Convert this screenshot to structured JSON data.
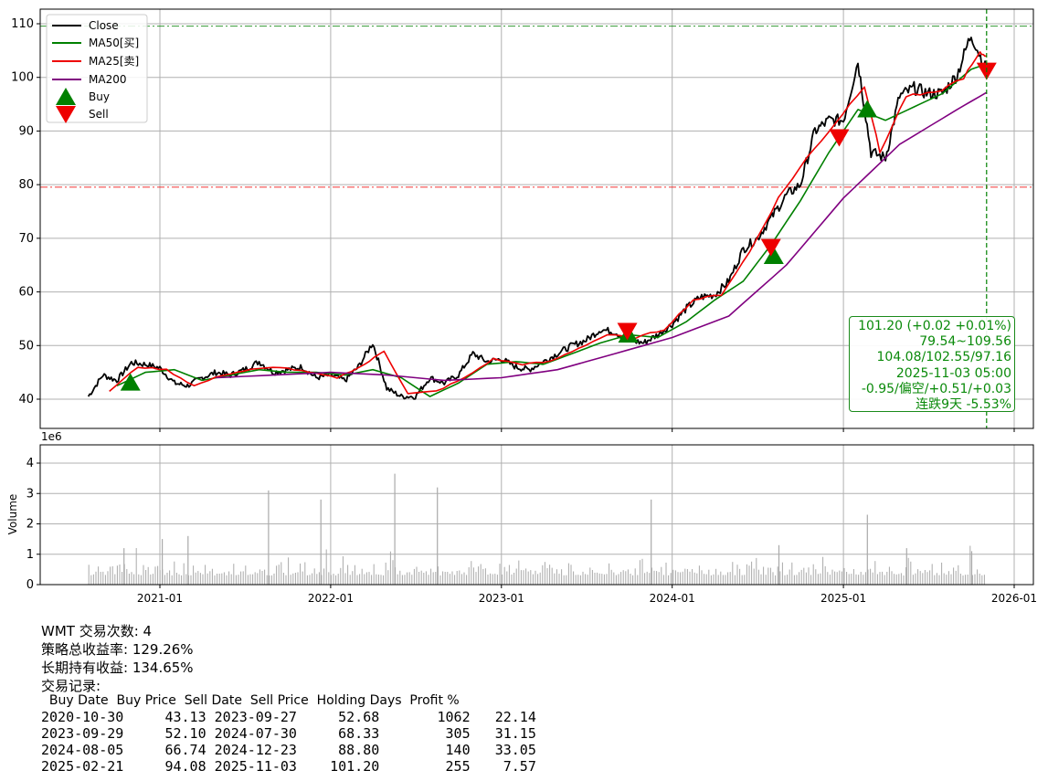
{
  "chart_data": [
    {
      "type": "line",
      "title": "",
      "xlabel": "",
      "ylabel": "",
      "ylim": [
        34,
        113
      ],
      "yticks": [
        40,
        50,
        60,
        70,
        80,
        90,
        100,
        110
      ],
      "xticks": [
        "2021-01",
        "2022-01",
        "2023-01",
        "2024-01",
        "2025-01",
        "2026-01"
      ],
      "grid": true,
      "legend_position": "top-left",
      "series": [
        {
          "name": "Close",
          "color": "#000000",
          "x": [
            "2020-08-01",
            "2020-09-01",
            "2020-10-01",
            "2020-11-01",
            "2020-12-01",
            "2021-01-01",
            "2021-02-01",
            "2021-03-01",
            "2021-04-01",
            "2021-05-01",
            "2021-06-01",
            "2021-07-01",
            "2021-08-01",
            "2021-09-01",
            "2021-10-01",
            "2021-11-01",
            "2021-12-01",
            "2022-01-01",
            "2022-02-01",
            "2022-03-01",
            "2022-04-01",
            "2022-05-01",
            "2022-06-01",
            "2022-07-01",
            "2022-08-01",
            "2022-09-01",
            "2022-10-01",
            "2022-11-01",
            "2022-12-01",
            "2023-01-01",
            "2023-02-01",
            "2023-03-01",
            "2023-04-01",
            "2023-05-01",
            "2023-06-01",
            "2023-07-01",
            "2023-08-01",
            "2023-09-01",
            "2023-10-01",
            "2023-11-01",
            "2023-12-01",
            "2024-01-01",
            "2024-02-01",
            "2024-03-01",
            "2024-04-01",
            "2024-05-01",
            "2024-06-01",
            "2024-07-01",
            "2024-08-01",
            "2024-09-01",
            "2024-10-01",
            "2024-11-01",
            "2024-12-01",
            "2025-01-01",
            "2025-02-01",
            "2025-03-01",
            "2025-04-01",
            "2025-05-01",
            "2025-06-01",
            "2025-07-01",
            "2025-08-01",
            "2025-09-01",
            "2025-10-01",
            "2025-11-03"
          ],
          "values": [
            40.5,
            44.5,
            43.5,
            46.8,
            46.5,
            45.8,
            43.0,
            42.5,
            44.0,
            45.0,
            44.5,
            45.5,
            47.0,
            45.0,
            45.5,
            46.0,
            44.0,
            44.5,
            43.5,
            46.0,
            50.5,
            42.0,
            40.5,
            40.5,
            44.0,
            43.0,
            44.5,
            48.5,
            47.0,
            47.5,
            46.0,
            45.5,
            47.0,
            48.5,
            50.0,
            51.0,
            53.0,
            52.5,
            51.0,
            50.5,
            52.0,
            54.0,
            57.0,
            59.0,
            59.5,
            62.0,
            68.0,
            70.0,
            74.0,
            78.0,
            80.0,
            90.0,
            92.0,
            92.0,
            103.0,
            86.0,
            85.0,
            96.5,
            98.0,
            97.0,
            97.0,
            100.5,
            108.0,
            101.2
          ]
        },
        {
          "name": "MA50[买]",
          "color": "#008000",
          "x": [
            "2020-10-01",
            "2020-12-01",
            "2021-02-01",
            "2021-04-01",
            "2021-06-01",
            "2021-08-01",
            "2021-10-01",
            "2021-12-01",
            "2022-02-01",
            "2022-04-01",
            "2022-06-01",
            "2022-08-01",
            "2022-10-01",
            "2022-12-01",
            "2023-02-01",
            "2023-04-01",
            "2023-06-01",
            "2023-08-01",
            "2023-10-01",
            "2023-12-01",
            "2024-02-01",
            "2024-04-01",
            "2024-06-01",
            "2024-08-01",
            "2024-10-01",
            "2024-12-01",
            "2025-02-01",
            "2025-04-01",
            "2025-06-01",
            "2025-08-01",
            "2025-10-01",
            "2025-11-03"
          ],
          "values": [
            42.5,
            45.0,
            45.5,
            43.5,
            44.5,
            45.5,
            45.0,
            45.0,
            44.5,
            45.5,
            44.0,
            40.5,
            43.0,
            46.5,
            47.0,
            46.5,
            48.5,
            50.5,
            52.0,
            51.5,
            54.5,
            58.5,
            62.0,
            69.0,
            77.0,
            86.0,
            94.0,
            92.0,
            94.5,
            97.0,
            101.5,
            102.5
          ]
        },
        {
          "name": "MA25[卖]",
          "color": "#ee0000",
          "x": [
            "2020-09-15",
            "2020-11-15",
            "2021-01-15",
            "2021-03-15",
            "2021-05-15",
            "2021-07-15",
            "2021-09-15",
            "2021-11-15",
            "2022-01-15",
            "2022-03-15",
            "2022-04-25",
            "2022-06-15",
            "2022-08-15",
            "2022-10-15",
            "2022-12-15",
            "2023-02-15",
            "2023-04-15",
            "2023-06-15",
            "2023-08-15",
            "2023-10-15",
            "2023-12-15",
            "2024-02-15",
            "2024-04-15",
            "2024-06-15",
            "2024-08-15",
            "2024-10-15",
            "2024-12-15",
            "2025-02-15",
            "2025-03-20",
            "2025-05-15",
            "2025-07-15",
            "2025-09-15",
            "2025-10-20",
            "2025-11-03"
          ],
          "values": [
            41.5,
            46.0,
            45.5,
            42.5,
            44.5,
            45.5,
            46.0,
            45.0,
            44.0,
            46.5,
            49.0,
            41.0,
            41.5,
            44.0,
            47.5,
            46.5,
            47.0,
            49.5,
            52.0,
            51.5,
            53.0,
            58.5,
            59.5,
            67.5,
            77.5,
            85.0,
            91.5,
            98.5,
            86.0,
            96.5,
            97.0,
            100.0,
            104.5,
            104.0
          ]
        },
        {
          "name": "MA200",
          "color": "#800080",
          "x": [
            "2021-05-01",
            "2021-09-01",
            "2022-01-01",
            "2022-05-01",
            "2022-09-01",
            "2023-01-01",
            "2023-05-01",
            "2023-09-01",
            "2024-01-01",
            "2024-05-01",
            "2024-09-01",
            "2025-01-01",
            "2025-05-01",
            "2025-09-01",
            "2025-11-03"
          ],
          "values": [
            44.0,
            44.5,
            45.0,
            44.5,
            43.5,
            44.0,
            45.5,
            48.5,
            51.5,
            55.5,
            65.0,
            77.5,
            87.5,
            94.0,
            97.2
          ]
        }
      ],
      "markers": [
        {
          "name": "Buy",
          "color": "#008000",
          "shape": "triangle-up",
          "points": [
            {
              "x": "2020-10-30",
              "y": 43.13
            },
            {
              "x": "2023-09-29",
              "y": 52.1
            },
            {
              "x": "2024-08-05",
              "y": 66.74
            },
            {
              "x": "2025-02-21",
              "y": 94.08
            }
          ]
        },
        {
          "name": "Sell",
          "color": "#ee0000",
          "shape": "triangle-down",
          "points": [
            {
              "x": "2023-09-27",
              "y": 52.68
            },
            {
              "x": "2024-07-30",
              "y": 68.33
            },
            {
              "x": "2024-12-23",
              "y": 88.8
            },
            {
              "x": "2025-11-03",
              "y": 101.2
            }
          ]
        }
      ],
      "hlines": [
        {
          "y": 109.56,
          "color": "#008000",
          "style": "dashdot"
        },
        {
          "y": 79.54,
          "color": "#ee0000",
          "style": "dashdot"
        }
      ],
      "vline": {
        "x": "2025-11-03",
        "color": "#008000",
        "style": "dashed"
      },
      "info_box": {
        "lines": [
          "101.20 (+0.02 +0.01%)",
          "79.54~109.56",
          "104.08/102.55/97.16",
          "2025-11-03 05:00",
          "-0.95/偏空/+0.51/+0.03",
          "连跌9天 -5.53%"
        ],
        "position": "bottom-right"
      }
    },
    {
      "type": "bar",
      "ylabel": "Volume",
      "scale_label": "1e6",
      "ylim": [
        0,
        4.7
      ],
      "yticks": [
        0,
        1,
        2,
        3,
        4
      ],
      "color": "#aaaaaa",
      "grid": true,
      "peaks": [
        {
          "x": "2020-10-15",
          "y": 1.2
        },
        {
          "x": "2021-01-05",
          "y": 1.5
        },
        {
          "x": "2021-03-01",
          "y": 1.6
        },
        {
          "x": "2021-08-20",
          "y": 3.1
        },
        {
          "x": "2021-12-10",
          "y": 2.8
        },
        {
          "x": "2022-05-17",
          "y": 3.65
        },
        {
          "x": "2022-08-16",
          "y": 3.2
        },
        {
          "x": "2023-11-16",
          "y": 2.8
        },
        {
          "x": "2024-08-15",
          "y": 1.3
        },
        {
          "x": "2025-02-20",
          "y": 2.3
        },
        {
          "x": "2025-05-15",
          "y": 1.2
        },
        {
          "x": "2025-10-01",
          "y": 1.1
        }
      ],
      "baseline_range": [
        0.3,
        0.9
      ]
    }
  ],
  "summary": {
    "line1": "WMT 交易次数: 4",
    "line2": "策略总收益率: 129.26%",
    "line3": "长期持有收益: 134.65%",
    "line4": "交易记录:"
  },
  "trade_table": {
    "columns": [
      "Buy Date",
      "Buy Price",
      "Sell Date",
      "Sell Price",
      "Holding Days",
      "Profit %"
    ],
    "rows": [
      [
        "2020-10-30",
        "43.13",
        "2023-09-27",
        "52.68",
        "1062",
        "22.14"
      ],
      [
        "2023-09-29",
        "52.10",
        "2024-07-30",
        "68.33",
        "305",
        "31.15"
      ],
      [
        "2024-08-05",
        "66.74",
        "2024-12-23",
        "88.80",
        "140",
        "33.05"
      ],
      [
        "2025-02-21",
        "94.08",
        "2025-11-03",
        "101.20",
        "255",
        "7.57"
      ]
    ]
  }
}
